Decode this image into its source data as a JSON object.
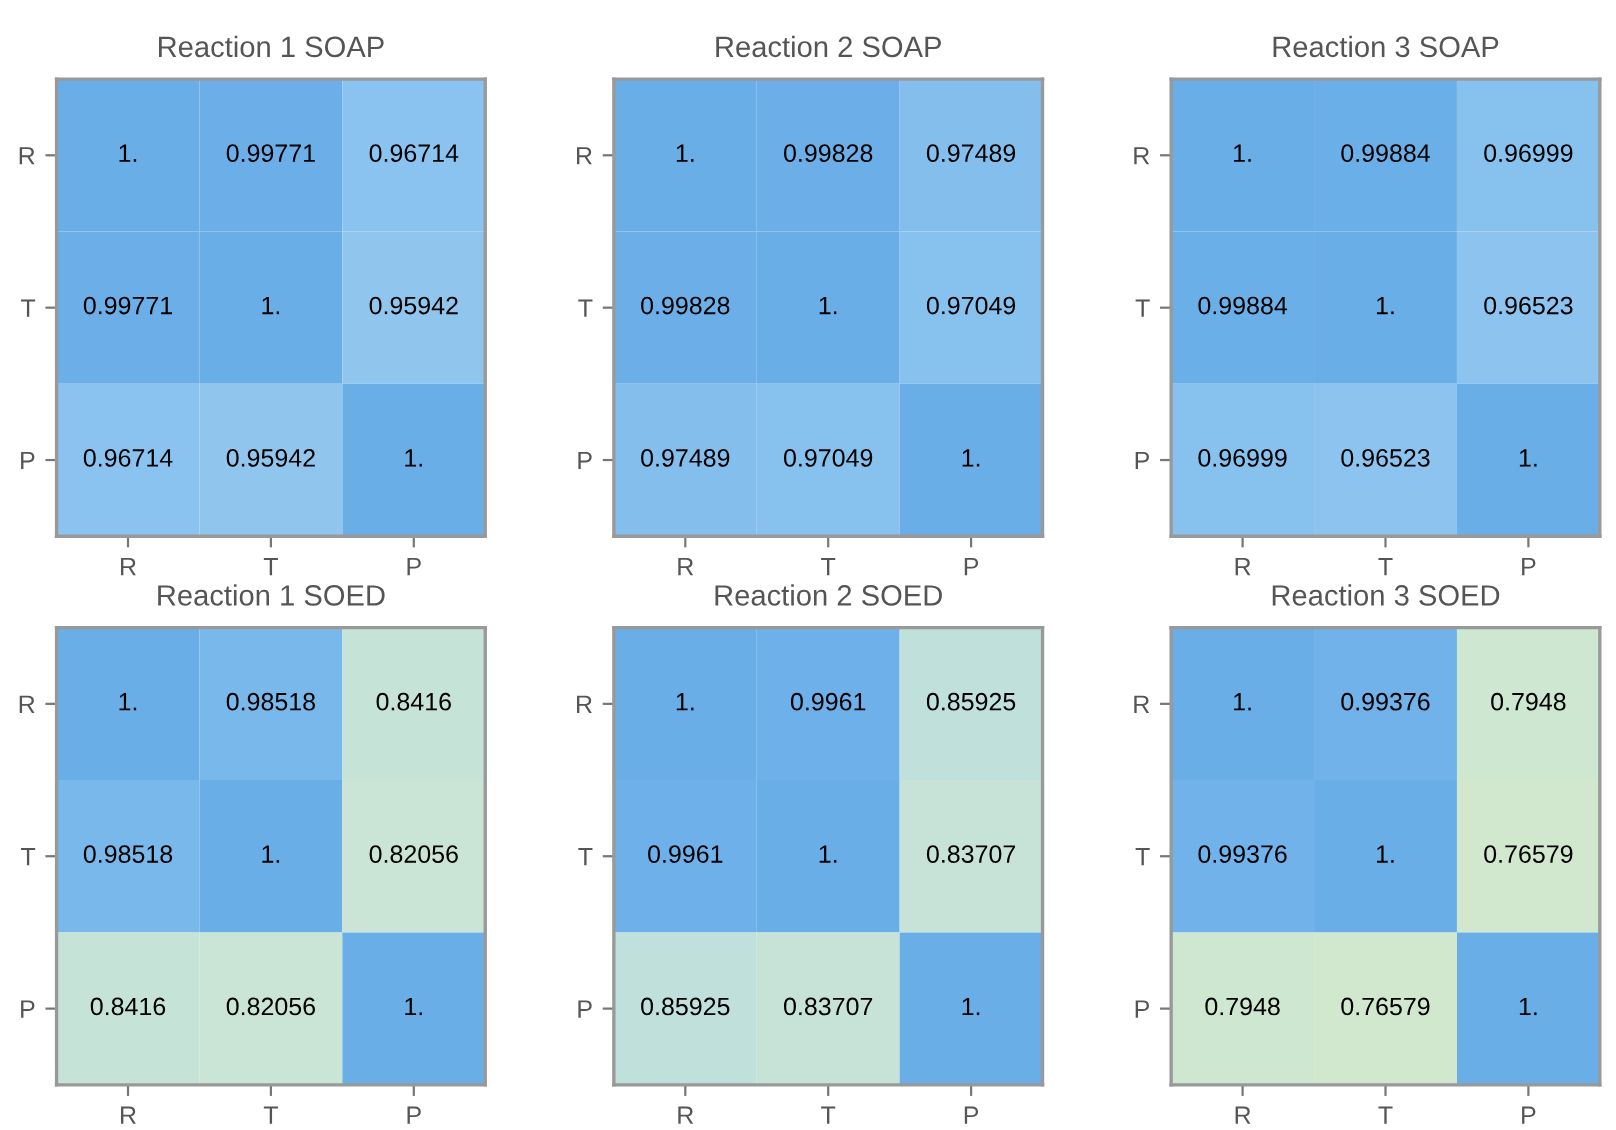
{
  "chart_data": [
    {
      "type": "heatmap",
      "title": "Reaction 1 SOAP",
      "categories": [
        "R",
        "T",
        "P"
      ],
      "y_categories": [
        "R",
        "T",
        "P"
      ],
      "cells": [
        [
          1,
          0.99771,
          0.96714
        ],
        [
          0.99771,
          1,
          0.95942
        ],
        [
          0.96714,
          0.95942,
          1
        ]
      ],
      "cell_labels": [
        [
          "1.",
          "0.99771",
          "0.96714"
        ],
        [
          "0.99771",
          "1.",
          "0.95942"
        ],
        [
          "0.96714",
          "0.95942",
          "1."
        ]
      ]
    },
    {
      "type": "heatmap",
      "title": "Reaction 2 SOAP",
      "categories": [
        "R",
        "T",
        "P"
      ],
      "y_categories": [
        "R",
        "T",
        "P"
      ],
      "cells": [
        [
          1,
          0.99828,
          0.97489
        ],
        [
          0.99828,
          1,
          0.97049
        ],
        [
          0.97489,
          0.97049,
          1
        ]
      ],
      "cell_labels": [
        [
          "1.",
          "0.99828",
          "0.97489"
        ],
        [
          "0.99828",
          "1.",
          "0.97049"
        ],
        [
          "0.97489",
          "0.97049",
          "1."
        ]
      ]
    },
    {
      "type": "heatmap",
      "title": "Reaction 3 SOAP",
      "categories": [
        "R",
        "T",
        "P"
      ],
      "y_categories": [
        "R",
        "T",
        "P"
      ],
      "cells": [
        [
          1,
          0.99884,
          0.96999
        ],
        [
          0.99884,
          1,
          0.96523
        ],
        [
          0.96999,
          0.96523,
          1
        ]
      ],
      "cell_labels": [
        [
          "1.",
          "0.99884",
          "0.96999"
        ],
        [
          "0.99884",
          "1.",
          "0.96523"
        ],
        [
          "0.96999",
          "0.96523",
          "1."
        ]
      ]
    },
    {
      "type": "heatmap",
      "title": "Reaction 1 SOED",
      "categories": [
        "R",
        "T",
        "P"
      ],
      "y_categories": [
        "R",
        "T",
        "P"
      ],
      "cells": [
        [
          1,
          0.98518,
          0.8416
        ],
        [
          0.98518,
          1,
          0.82056
        ],
        [
          0.8416,
          0.82056,
          1
        ]
      ],
      "cell_labels": [
        [
          "1.",
          "0.98518",
          "0.8416"
        ],
        [
          "0.98518",
          "1.",
          "0.82056"
        ],
        [
          "0.8416",
          "0.82056",
          "1."
        ]
      ]
    },
    {
      "type": "heatmap",
      "title": "Reaction 2 SOED",
      "categories": [
        "R",
        "T",
        "P"
      ],
      "y_categories": [
        "R",
        "T",
        "P"
      ],
      "cells": [
        [
          1,
          0.9961,
          0.85925
        ],
        [
          0.9961,
          1,
          0.83707
        ],
        [
          0.85925,
          0.83707,
          1
        ]
      ],
      "cell_labels": [
        [
          "1.",
          "0.9961",
          "0.85925"
        ],
        [
          "0.9961",
          "1.",
          "0.83707"
        ],
        [
          "0.85925",
          "0.83707",
          "1."
        ]
      ]
    },
    {
      "type": "heatmap",
      "title": "Reaction 3 SOED",
      "categories": [
        "R",
        "T",
        "P"
      ],
      "y_categories": [
        "R",
        "T",
        "P"
      ],
      "cells": [
        [
          1,
          0.99376,
          0.7948
        ],
        [
          0.99376,
          1,
          0.76579
        ],
        [
          0.7948,
          0.76579,
          1
        ]
      ],
      "cell_labels": [
        [
          "1.",
          "0.99376",
          "0.7948"
        ],
        [
          "0.99376",
          "1.",
          "0.76579"
        ],
        [
          "0.7948",
          "0.76579",
          "1."
        ]
      ]
    }
  ]
}
